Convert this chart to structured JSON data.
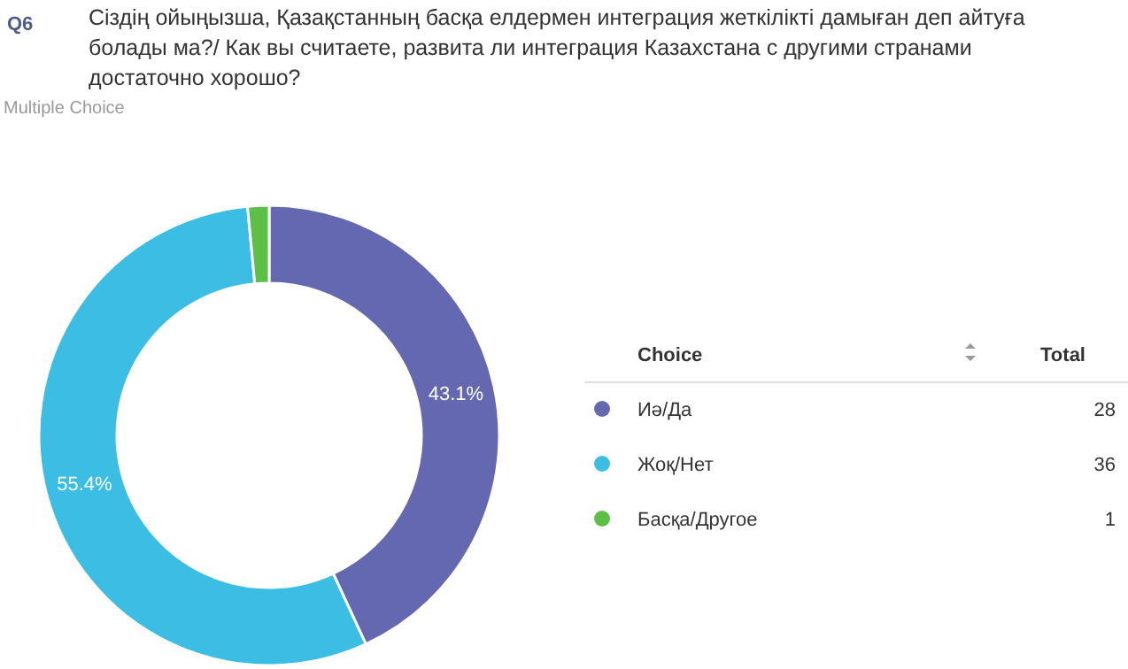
{
  "chart_data": {
    "type": "donut",
    "title": "Сіздің ойыңызша, Қазақстанның басқа елдермен интеграция жеткілікті дамыған деп айтуға болады ма?/ Как вы считаете, развита ли интеграция Казахстана с другими странами достаточно хорошо?",
    "subtitle": "Multiple Choice",
    "annotations": [
      "Q6",
      "Total",
      "28",
      "36",
      "1"
    ],
    "legend_title": "Choice",
    "categories": [
      "Иә/Да",
      "Жоқ/Нет",
      "Басқа/Другое"
    ],
    "values": [
      43.1,
      55.4,
      1.5
    ],
    "colors": [
      "#6468b0",
      "#3bbde4",
      "#5cc046"
    ],
    "value_labels": [
      "43.1%",
      "55.4%",
      null
    ],
    "legend": "right"
  }
}
